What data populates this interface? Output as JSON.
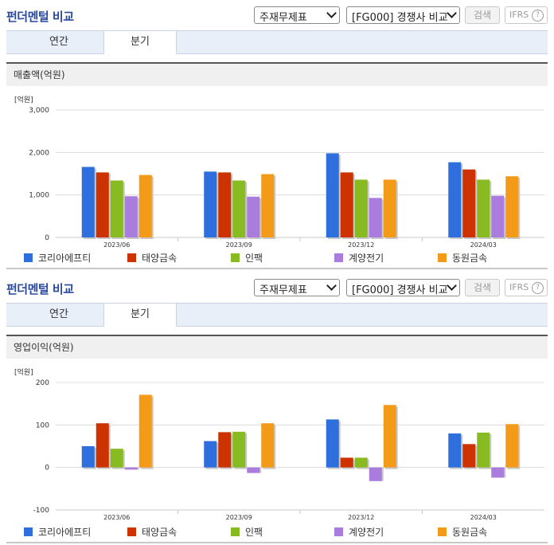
{
  "sections": [
    {
      "title": "펀더멘털 비교",
      "select_statement": "주재무제표",
      "select_compare": "[FG000] 경쟁사 비교",
      "search_label": "검색",
      "ifrs_label": "IFRS",
      "help_label": "?",
      "tabs": [
        {
          "label": "연간"
        },
        {
          "label": "분기"
        }
      ],
      "active_tab": "분기",
      "chart_title": "매출액(억원)"
    },
    {
      "title": "펀더멘털 비교",
      "select_statement": "주재무제표",
      "select_compare": "[FG000] 경쟁사 비교",
      "search_label": "검색",
      "ifrs_label": "IFRS",
      "help_label": "?",
      "tabs": [
        {
          "label": "연간"
        },
        {
          "label": "분기"
        }
      ],
      "active_tab": "분기",
      "chart_title": "영업이익(억원)"
    }
  ],
  "colors": {
    "series": [
      "#2f6fdd",
      "#cc3300",
      "#88bb22",
      "#a97cdd",
      "#f39a18"
    ],
    "title": "#2a4aa0"
  },
  "chart_data": [
    {
      "type": "bar",
      "title": "매출액(억원)",
      "unit_label": "[억원]",
      "categories": [
        "2023/06",
        "2023/09",
        "2023/12",
        "2024/03"
      ],
      "ylim": [
        0,
        3000
      ],
      "yticks": [
        0,
        1000,
        2000,
        3000
      ],
      "ytick_labels": [
        "0",
        "1,000",
        "2,000",
        "3,000"
      ],
      "grid": true,
      "legend_position": "bottom",
      "series": [
        {
          "name": "코리아에프티",
          "values": [
            1660,
            1550,
            1980,
            1770
          ]
        },
        {
          "name": "태양금속",
          "values": [
            1530,
            1530,
            1530,
            1600
          ]
        },
        {
          "name": "인팩",
          "values": [
            1340,
            1340,
            1360,
            1360
          ]
        },
        {
          "name": "계양전기",
          "values": [
            970,
            960,
            930,
            980
          ]
        },
        {
          "name": "동원금속",
          "values": [
            1470,
            1490,
            1360,
            1440
          ]
        }
      ]
    },
    {
      "type": "bar",
      "title": "영업이익(억원)",
      "unit_label": "[억원]",
      "categories": [
        "2023/06",
        "2023/09",
        "2023/12",
        "2024/03"
      ],
      "ylim": [
        -100,
        200
      ],
      "yticks": [
        -100,
        0,
        100,
        200
      ],
      "ytick_labels": [
        "-100",
        "0",
        "100",
        "200"
      ],
      "grid": true,
      "legend_position": "bottom",
      "series": [
        {
          "name": "코리아에프티",
          "values": [
            50,
            62,
            113,
            80
          ]
        },
        {
          "name": "태양금속",
          "values": [
            104,
            83,
            23,
            55
          ]
        },
        {
          "name": "인팩",
          "values": [
            44,
            84,
            23,
            82
          ]
        },
        {
          "name": "계양전기",
          "values": [
            -5,
            -13,
            -32,
            -24
          ]
        },
        {
          "name": "동원금속",
          "values": [
            171,
            104,
            147,
            102
          ]
        }
      ]
    }
  ]
}
